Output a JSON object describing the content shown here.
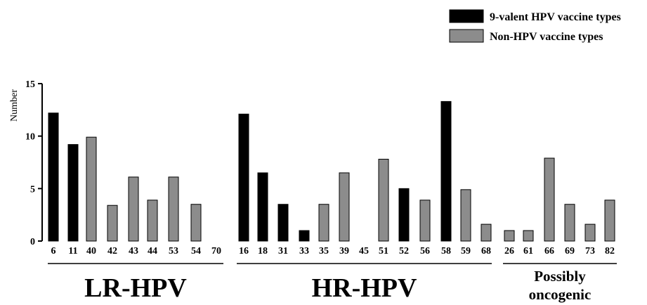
{
  "chart_data": {
    "type": "bar",
    "title": "",
    "xlabel": "",
    "ylabel": "Number",
    "ylim": [
      0,
      15
    ],
    "yticks": [
      "0",
      "5",
      "10",
      "15"
    ],
    "grid": false,
    "legend_position": "top-right",
    "colors": {
      "vaccine": "#000000",
      "non_vaccine": "#8c8c8c"
    },
    "series": [
      {
        "name": "9-valent HPV vaccine types",
        "color": "#000000"
      },
      {
        "name": "Non-HPV vaccine types",
        "color": "#8c8c8c"
      }
    ],
    "categories": [
      "6",
      "11",
      "40",
      "42",
      "43",
      "44",
      "53",
      "54",
      "70",
      "16",
      "18",
      "31",
      "33",
      "35",
      "39",
      "45",
      "51",
      "52",
      "56",
      "58",
      "59",
      "68",
      "26",
      "61",
      "66",
      "69",
      "73",
      "82"
    ],
    "values": [
      12.2,
      9.2,
      9.9,
      3.4,
      6.1,
      3.9,
      6.1,
      3.5,
      0,
      12.1,
      6.5,
      3.5,
      1.0,
      3.5,
      6.5,
      0,
      7.8,
      5.0,
      3.9,
      13.3,
      4.9,
      1.6,
      1.0,
      1.0,
      7.9,
      3.5,
      1.6,
      3.9
    ],
    "series_index": [
      0,
      0,
      1,
      1,
      1,
      1,
      1,
      1,
      1,
      0,
      0,
      0,
      0,
      1,
      1,
      1,
      1,
      0,
      1,
      0,
      1,
      1,
      1,
      1,
      1,
      1,
      1,
      1
    ],
    "groups": [
      {
        "label": "LR-HPV",
        "start": 0,
        "end": 8
      },
      {
        "label": "HR-HPV",
        "start": 9,
        "end": 21
      },
      {
        "label": "Possibly oncogenic",
        "start": 22,
        "end": 27
      }
    ]
  }
}
